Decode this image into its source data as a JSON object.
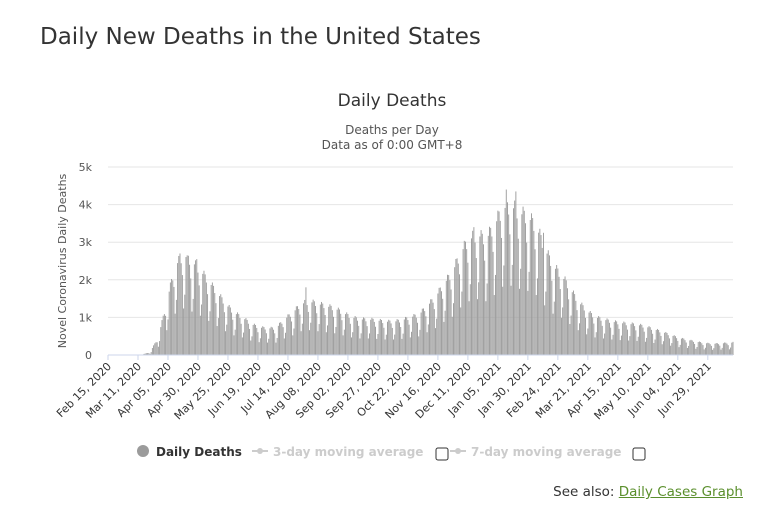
{
  "page": {
    "title": "Daily New Deaths in the United States",
    "see_also_label": "See also:",
    "see_also_link": "Daily Cases Graph"
  },
  "colors": {
    "bar": "#9b9b9b",
    "grid": "#e6e6e6",
    "link": "#5a8f2c",
    "legend_inactive": "#cccccc"
  },
  "legend": [
    {
      "label": "Daily Deaths",
      "marker": "circle",
      "active": true,
      "has_checkbox": false
    },
    {
      "label": "3-day moving average",
      "marker": "line-dot",
      "active": false,
      "has_checkbox": true
    },
    {
      "label": "7-day moving average",
      "marker": "line-dot",
      "active": false,
      "has_checkbox": true
    }
  ],
  "chart_data": {
    "type": "bar",
    "title": "Daily Deaths",
    "subtitle_lines": [
      "Deaths per Day",
      "Data as of 0:00 GMT+8"
    ],
    "ylabel": "Novel Coronavirus Daily Deaths",
    "xlabel": "",
    "ylim": [
      0,
      5000
    ],
    "y_ticks": [
      0,
      1000,
      2000,
      3000,
      4000,
      5000
    ],
    "y_tick_labels": [
      "0",
      "1k",
      "2k",
      "3k",
      "4k",
      "5k"
    ],
    "x_start": "2020-02-15",
    "x_end": "2021-07-20",
    "x_tick_labels": [
      "Feb 15, 2020",
      "Mar 11, 2020",
      "Apr 05, 2020",
      "Apr 30, 2020",
      "May 25, 2020",
      "Jun 19, 2020",
      "Jul 14, 2020",
      "Aug 08, 2020",
      "Sep 02, 2020",
      "Sep 27, 2020",
      "Oct 22, 2020",
      "Nov 16, 2020",
      "Dec 11, 2020",
      "Jan 05, 2021",
      "Jan 30, 2021",
      "Feb 24, 2021",
      "Mar 21, 2021",
      "Apr 15, 2021",
      "May 10, 2021",
      "Jun 04, 2021",
      "Jun 29, 2021"
    ],
    "grid": true,
    "legend_position": "bottom",
    "series": [
      {
        "name": "Daily Deaths",
        "weekly_profile": [
          {
            "x": "2020-02-15",
            "y": 0
          },
          {
            "x": "2020-02-29",
            "y": 0
          },
          {
            "x": "2020-03-14",
            "y": 10
          },
          {
            "x": "2020-03-21",
            "y": 60
          },
          {
            "x": "2020-03-28",
            "y": 400
          },
          {
            "x": "2020-04-04",
            "y": 1200
          },
          {
            "x": "2020-04-11",
            "y": 2000
          },
          {
            "x": "2020-04-18",
            "y": 2250
          },
          {
            "x": "2020-04-25",
            "y": 2100
          },
          {
            "x": "2020-05-02",
            "y": 1900
          },
          {
            "x": "2020-05-09",
            "y": 1650
          },
          {
            "x": "2020-05-16",
            "y": 1400
          },
          {
            "x": "2020-05-23",
            "y": 1150
          },
          {
            "x": "2020-05-30",
            "y": 950
          },
          {
            "x": "2020-06-06",
            "y": 850
          },
          {
            "x": "2020-06-13",
            "y": 700
          },
          {
            "x": "2020-06-20",
            "y": 620
          },
          {
            "x": "2020-06-27",
            "y": 600
          },
          {
            "x": "2020-07-04",
            "y": 600
          },
          {
            "x": "2020-07-11",
            "y": 800
          },
          {
            "x": "2020-07-18",
            "y": 950
          },
          {
            "x": "2020-07-25",
            "y": 1150
          },
          {
            "x": "2020-08-01",
            "y": 1200
          },
          {
            "x": "2020-08-08",
            "y": 1150
          },
          {
            "x": "2020-08-15",
            "y": 1100
          },
          {
            "x": "2020-08-22",
            "y": 1050
          },
          {
            "x": "2020-08-29",
            "y": 950
          },
          {
            "x": "2020-09-05",
            "y": 850
          },
          {
            "x": "2020-09-12",
            "y": 800
          },
          {
            "x": "2020-09-19",
            "y": 800
          },
          {
            "x": "2020-09-26",
            "y": 780
          },
          {
            "x": "2020-10-03",
            "y": 750
          },
          {
            "x": "2020-10-10",
            "y": 750
          },
          {
            "x": "2020-10-17",
            "y": 780
          },
          {
            "x": "2020-10-24",
            "y": 850
          },
          {
            "x": "2020-10-31",
            "y": 900
          },
          {
            "x": "2020-11-07",
            "y": 1100
          },
          {
            "x": "2020-11-14",
            "y": 1300
          },
          {
            "x": "2020-11-21",
            "y": 1600
          },
          {
            "x": "2020-11-28",
            "y": 1850
          },
          {
            "x": "2020-12-05",
            "y": 2300
          },
          {
            "x": "2020-12-12",
            "y": 2600
          },
          {
            "x": "2020-12-19",
            "y": 2700
          },
          {
            "x": "2020-12-26",
            "y": 2600
          },
          {
            "x": "2021-01-02",
            "y": 2900
          },
          {
            "x": "2021-01-09",
            "y": 3300
          },
          {
            "x": "2021-01-16",
            "y": 3350
          },
          {
            "x": "2021-01-23",
            "y": 3200
          },
          {
            "x": "2021-01-30",
            "y": 3100
          },
          {
            "x": "2021-02-06",
            "y": 2900
          },
          {
            "x": "2021-02-13",
            "y": 2400
          },
          {
            "x": "2021-02-20",
            "y": 2000
          },
          {
            "x": "2021-02-27",
            "y": 1800
          },
          {
            "x": "2021-03-06",
            "y": 1500
          },
          {
            "x": "2021-03-13",
            "y": 1200
          },
          {
            "x": "2021-03-20",
            "y": 1000
          },
          {
            "x": "2021-03-27",
            "y": 850
          },
          {
            "x": "2021-04-03",
            "y": 800
          },
          {
            "x": "2021-04-10",
            "y": 750
          },
          {
            "x": "2021-04-17",
            "y": 720
          },
          {
            "x": "2021-04-24",
            "y": 700
          },
          {
            "x": "2021-05-01",
            "y": 680
          },
          {
            "x": "2021-05-08",
            "y": 640
          },
          {
            "x": "2021-05-15",
            "y": 580
          },
          {
            "x": "2021-05-22",
            "y": 520
          },
          {
            "x": "2021-05-29",
            "y": 450
          },
          {
            "x": "2021-06-05",
            "y": 380
          },
          {
            "x": "2021-06-12",
            "y": 340
          },
          {
            "x": "2021-06-19",
            "y": 300
          },
          {
            "x": "2021-06-26",
            "y": 270
          },
          {
            "x": "2021-07-03",
            "y": 250
          },
          {
            "x": "2021-07-10",
            "y": 260
          },
          {
            "x": "2021-07-20",
            "y": 280
          }
        ],
        "peaks": [
          {
            "x": "2020-04-15",
            "y": 2700
          },
          {
            "x": "2020-04-21",
            "y": 2650
          },
          {
            "x": "2020-04-29",
            "y": 2550
          },
          {
            "x": "2020-07-29",
            "y": 1800
          },
          {
            "x": "2020-12-16",
            "y": 3400
          },
          {
            "x": "2021-01-12",
            "y": 4400
          },
          {
            "x": "2021-01-20",
            "y": 4350
          },
          {
            "x": "2021-02-04",
            "y": 3300
          },
          {
            "x": "2021-02-12",
            "y": 3250
          }
        ]
      }
    ]
  }
}
